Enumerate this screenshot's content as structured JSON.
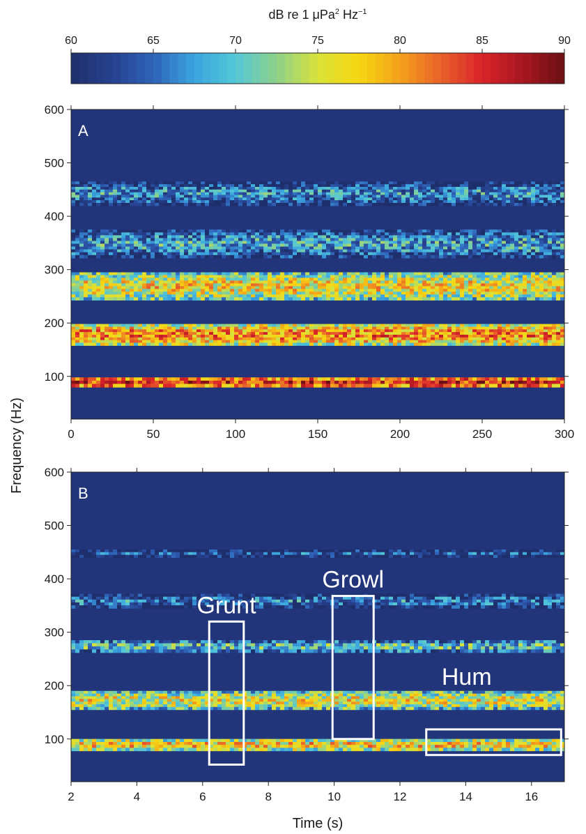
{
  "colorbar": {
    "title_main": "dB re 1 μPa",
    "title_sup1": "2",
    "title_mid": " Hz",
    "title_sup2": "−1",
    "min": 60,
    "max": 90,
    "ticks": [
      "60",
      "65",
      "70",
      "75",
      "80",
      "85",
      "90"
    ],
    "colormap": "jet",
    "stops": [
      "#1f2f6b",
      "#26418f",
      "#2f63b8",
      "#3aa4df",
      "#54c7d6",
      "#8dd18a",
      "#d9e23a",
      "#f7d612",
      "#f3a11b",
      "#e8612a",
      "#d9232a",
      "#a71720",
      "#6b0f14"
    ]
  },
  "shared": {
    "ylabel": "Frequency (Hz)",
    "background_color": "#22357a"
  },
  "chart_data": [
    {
      "type": "heatmap",
      "panel_label": "A",
      "xlabel": "",
      "ylabel": "Frequency (Hz)",
      "xlim": [
        0,
        300
      ],
      "ylim": [
        20,
        600
      ],
      "x_ticks": [
        "0",
        "50",
        "100",
        "150",
        "200",
        "250",
        "300"
      ],
      "y_ticks": [
        "100",
        "200",
        "300",
        "400",
        "500",
        "600"
      ],
      "bands": [
        {
          "f_low": 80,
          "f_high": 98,
          "level_db": 87
        },
        {
          "f_low": 158,
          "f_high": 198,
          "level_db": 83
        },
        {
          "f_low": 243,
          "f_high": 295,
          "level_db": 79
        },
        {
          "f_low": 322,
          "f_high": 375,
          "level_db": 70
        },
        {
          "f_low": 420,
          "f_high": 465,
          "level_db": 69
        }
      ]
    },
    {
      "type": "heatmap",
      "panel_label": "B",
      "xlabel": "Time (s)",
      "ylabel": "Frequency (Hz)",
      "xlim": [
        2,
        17
      ],
      "ylim": [
        20,
        600
      ],
      "x_ticks": [
        "2",
        "4",
        "6",
        "8",
        "10",
        "12",
        "14",
        "16"
      ],
      "y_ticks": [
        "100",
        "200",
        "300",
        "400",
        "500",
        "600"
      ],
      "bands": [
        {
          "f_low": 78,
          "f_high": 100,
          "level_db": 80
        },
        {
          "f_low": 155,
          "f_high": 190,
          "level_db": 78
        },
        {
          "f_low": 262,
          "f_high": 285,
          "level_db": 72
        },
        {
          "f_low": 345,
          "f_high": 372,
          "level_db": 68
        },
        {
          "f_low": 440,
          "f_high": 455,
          "level_db": 66
        }
      ],
      "annotations": [
        {
          "label": "Grunt",
          "t_start": 6.2,
          "t_end": 7.25,
          "f_low": 52,
          "f_high": 320
        },
        {
          "label": "Growl",
          "t_start": 9.95,
          "t_end": 11.2,
          "f_low": 100,
          "f_high": 368
        },
        {
          "label": "Hum",
          "t_start": 12.8,
          "t_end": 16.9,
          "f_low": 70,
          "f_high": 118
        }
      ]
    }
  ]
}
